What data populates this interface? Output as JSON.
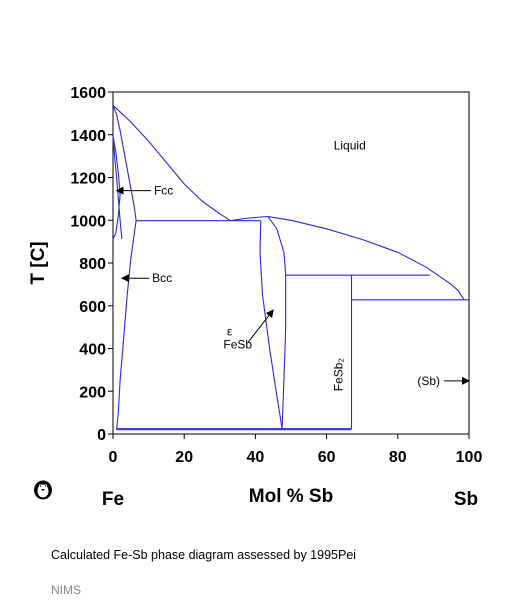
{
  "chart_data": {
    "type": "line",
    "title": "",
    "xlabel": "Mol % Sb",
    "ylabel": "T [C]",
    "xlim": [
      0,
      100
    ],
    "ylim": [
      0,
      1600
    ],
    "x_ticks": [
      0,
      20,
      40,
      60,
      80,
      100
    ],
    "y_ticks": [
      0,
      200,
      400,
      600,
      800,
      1000,
      1200,
      1400,
      1600
    ],
    "grid": false,
    "line_color": "#2a2ad8",
    "endpoint_labels": {
      "left": "Fe",
      "right": "Sb"
    },
    "series": [
      {
        "x": [
          0,
          5,
          10,
          15,
          20,
          25,
          30,
          33
        ],
        "y": [
          1538,
          1460,
          1370,
          1270,
          1170,
          1090,
          1030,
          998
        ]
      },
      {
        "x": [
          0,
          1,
          2,
          3,
          4,
          5,
          6,
          6.5
        ],
        "y": [
          1538,
          1495,
          1420,
          1330,
          1240,
          1150,
          1060,
          998
        ]
      },
      {
        "x": [
          0,
          0.8,
          1.5,
          2,
          1.5,
          0.8,
          0
        ],
        "y": [
          1394,
          1320,
          1220,
          1120,
          1020,
          940,
          912
        ]
      },
      {
        "x": [
          0,
          1,
          2,
          2.5
        ],
        "y": [
          1380,
          1200,
          1000,
          912
        ]
      },
      {
        "x": [
          6.5,
          5,
          4,
          3,
          2,
          1.5,
          1
        ],
        "y": [
          998,
          820,
          650,
          450,
          250,
          100,
          20
        ]
      },
      {
        "x": [
          6.5,
          41.5
        ],
        "y": [
          998,
          998
        ]
      },
      {
        "x": [
          33,
          37,
          41.5,
          43.5
        ],
        "y": [
          998,
          1008,
          1015,
          1017
        ]
      },
      {
        "x": [
          43.5,
          50,
          60,
          70,
          80,
          88,
          92,
          95,
          97,
          98.5
        ],
        "y": [
          1017,
          1000,
          960,
          910,
          850,
          780,
          735,
          700,
          670,
          630
        ]
      },
      {
        "x": [
          41.5,
          41.3,
          42,
          44,
          46,
          47.5
        ],
        "y": [
          998,
          850,
          650,
          400,
          180,
          25
        ]
      },
      {
        "x": [
          43.5,
          46,
          48,
          48.5,
          48.5,
          48,
          47.5
        ],
        "y": [
          1017,
          960,
          850,
          743,
          500,
          250,
          25
        ]
      },
      {
        "x": [
          48.5,
          67,
          89
        ],
        "y": [
          743,
          743,
          743
        ]
      },
      {
        "x": [
          67,
          67
        ],
        "y": [
          743,
          25
        ]
      },
      {
        "x": [
          67,
          98.5,
          100
        ],
        "y": [
          628,
          628,
          628
        ]
      },
      {
        "x": [
          1,
          67
        ],
        "y": [
          25,
          25
        ]
      },
      {
        "x": [
          1,
          67
        ],
        "y": [
          20,
          20
        ]
      }
    ],
    "annotations": [
      {
        "text": "Liquid",
        "x": 62,
        "y": 1330,
        "arrow": "none"
      },
      {
        "text": "Fcc",
        "x": 11.5,
        "y": 1120,
        "arrow": "left",
        "arrow_to": [
          1,
          1120
        ]
      },
      {
        "text": "Bcc",
        "x": 11,
        "y": 710,
        "arrow": "left",
        "arrow_to": [
          2.5,
          730
        ]
      },
      {
        "text": "ε",
        "x": 32,
        "y": 460,
        "arrow": "none"
      },
      {
        "text": "FeSb",
        "x": 31,
        "y": 400,
        "arrow": "upright",
        "arrow_from": [
          38,
          430
        ],
        "arrow_to": [
          45,
          580
        ]
      },
      {
        "text": "FeSb₂",
        "x": 64.5,
        "y": 200,
        "arrow": "none",
        "rotate": -90
      },
      {
        "text": "(Sb)",
        "x": 85.5,
        "y": 230,
        "arrow": "right",
        "arrow_to": [
          100,
          240
        ]
      }
    ]
  },
  "caption": "Calculated Fe-Sb phase diagram assessed by 1995Pei",
  "source": "NIMS",
  "logo_icon": "penguin-icon"
}
